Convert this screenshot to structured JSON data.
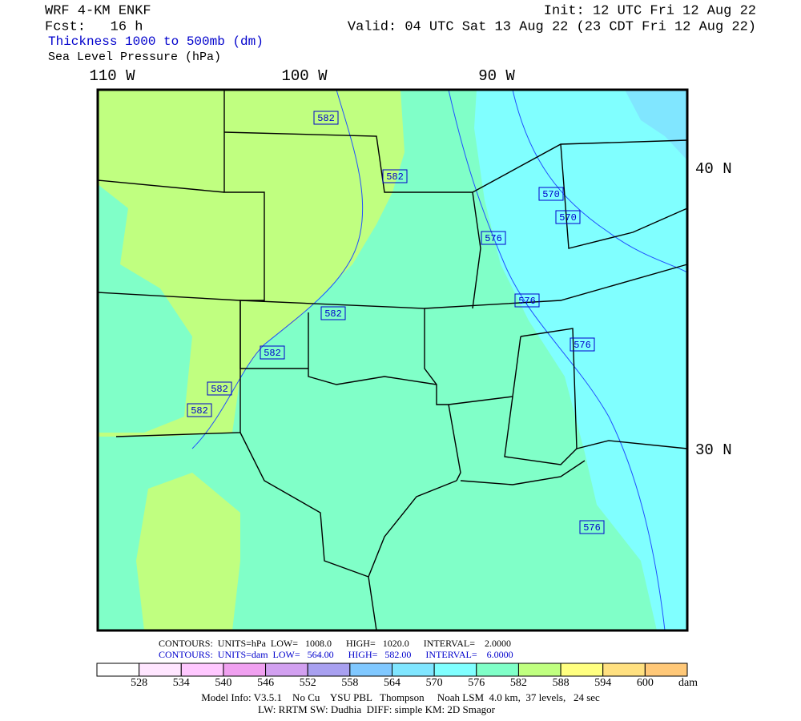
{
  "header": {
    "left": [
      "WRF 4-KM ENKF",
      "Fcst:   16 h"
    ],
    "right": [
      "Init: 12 UTC Fri 12 Aug 22",
      "Valid: 04 UTC Sat 13 Aug 22 (23 CDT Fri 12 Aug 22)"
    ],
    "field1": "Thickness 1000 to 500mb (dm)",
    "field2": "Sea Level Pressure (hPa)"
  },
  "map": {
    "longitudes": [
      "110 W",
      "100 W",
      "90 W"
    ],
    "latitudes": [
      "40 N",
      "30 N"
    ],
    "contour_labels": [
      "582",
      "582",
      "570",
      "570",
      "576",
      "576",
      "582",
      "582",
      "576",
      "582",
      "582",
      "576"
    ]
  },
  "contours": {
    "line1": "CONTOURS:  UNITS=hPa  LOW=   1008.0      HIGH=   1020.0      INTERVAL=    2.0000",
    "line2": "CONTOURS:  UNITS=dam  LOW=   564.00      HIGH=   582.00      INTERVAL=    6.0000"
  },
  "colorbar": {
    "colors": [
      "#ffffff",
      "#ffe6ff",
      "#ffc8ff",
      "#f0a0f0",
      "#d2a0f0",
      "#a8a0f0",
      "#80c8ff",
      "#80e6ff",
      "#80ffff",
      "#80ffc8",
      "#c0ff80",
      "#ffff80",
      "#ffe080",
      "#ffc878"
    ],
    "labels": [
      "528",
      "534",
      "540",
      "546",
      "552",
      "558",
      "564",
      "570",
      "576",
      "582",
      "588",
      "594",
      "600"
    ],
    "unit": "dam"
  },
  "footer": {
    "line1": "Model Info: V3.5.1    No Cu    YSU PBL   Thompson     Noah LSM  4.0 km,  37 levels,   24 sec",
    "line2": "LW: RRTM SW: Dudhia  DIFF: simple KM: 2D Smagor"
  }
}
